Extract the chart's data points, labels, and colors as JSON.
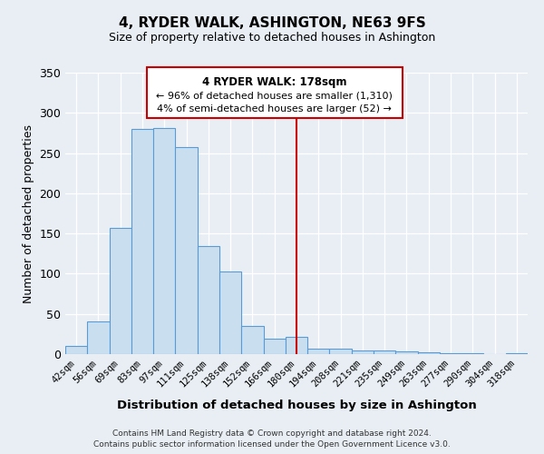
{
  "title": "4, RYDER WALK, ASHINGTON, NE63 9FS",
  "subtitle": "Size of property relative to detached houses in Ashington",
  "xlabel": "Distribution of detached houses by size in Ashington",
  "ylabel": "Number of detached properties",
  "bar_labels": [
    "42sqm",
    "56sqm",
    "69sqm",
    "83sqm",
    "97sqm",
    "111sqm",
    "125sqm",
    "138sqm",
    "152sqm",
    "166sqm",
    "180sqm",
    "194sqm",
    "208sqm",
    "221sqm",
    "235sqm",
    "249sqm",
    "263sqm",
    "277sqm",
    "290sqm",
    "304sqm",
    "318sqm"
  ],
  "bar_values": [
    10,
    41,
    157,
    280,
    281,
    257,
    134,
    103,
    35,
    19,
    22,
    7,
    7,
    5,
    5,
    3,
    2,
    1,
    1,
    0,
    1
  ],
  "bar_color": "#c9dff0",
  "bar_edge_color": "#5b9bd5",
  "vline_x": 10.0,
  "vline_color": "#cc0000",
  "ylim": [
    0,
    350
  ],
  "yticks": [
    0,
    50,
    100,
    150,
    200,
    250,
    300,
    350
  ],
  "annotation_title": "4 RYDER WALK: 178sqm",
  "annotation_line1": "← 96% of detached houses are smaller (1,310)",
  "annotation_line2": "4% of semi-detached houses are larger (52) →",
  "annotation_box_color": "#cc0000",
  "background_color": "#e8eef4",
  "footer_line1": "Contains HM Land Registry data © Crown copyright and database right 2024.",
  "footer_line2": "Contains public sector information licensed under the Open Government Licence v3.0."
}
